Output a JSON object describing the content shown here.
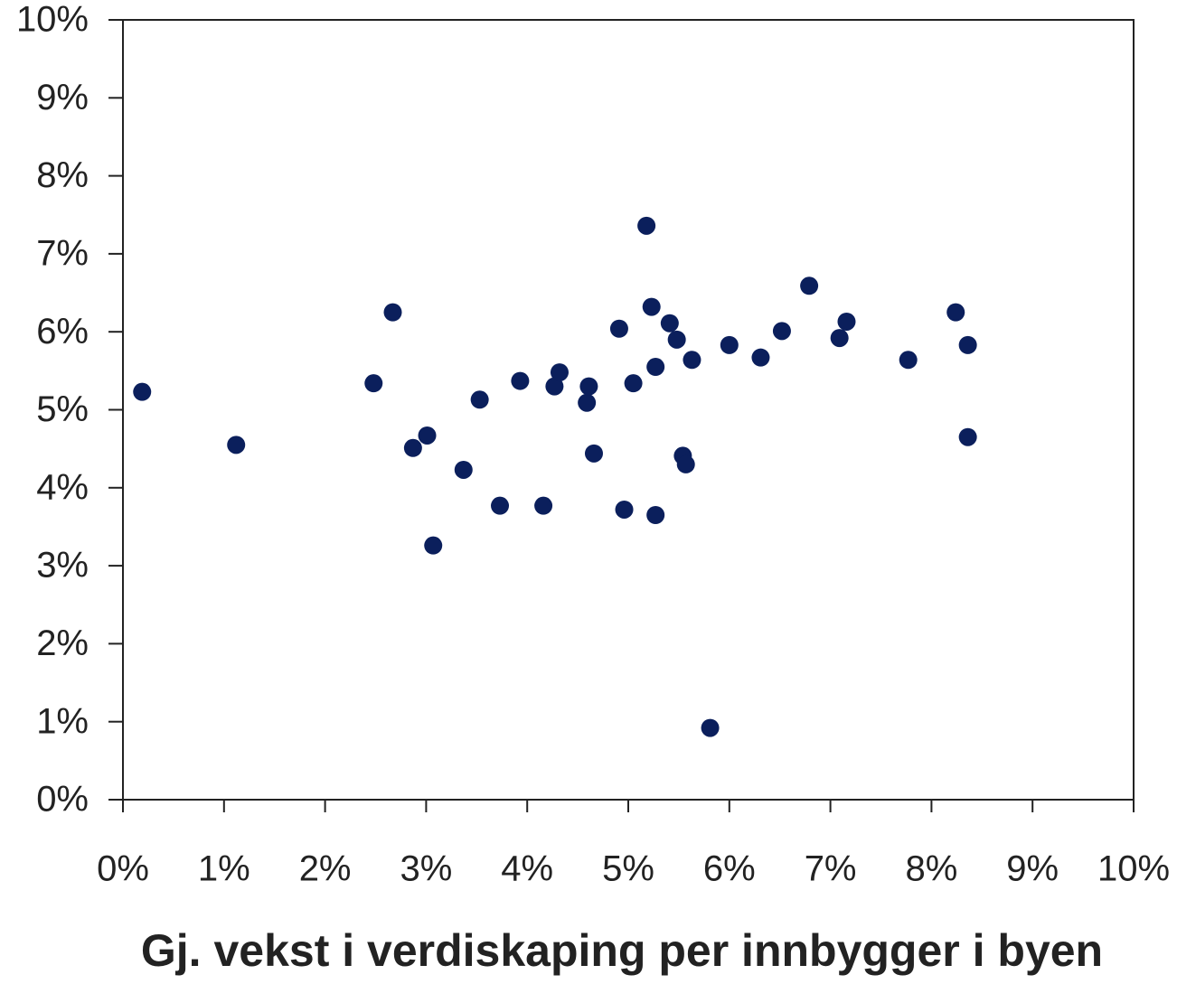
{
  "chart_data": {
    "type": "scatter",
    "x_label": "Gj. vekst i verdiskaping per innbygger i byen",
    "color": "#0b1f5c",
    "x": [
      0.19,
      1.12,
      2.48,
      2.67,
      2.87,
      3.01,
      3.07,
      3.37,
      3.53,
      3.73,
      3.93,
      4.16,
      4.27,
      4.32,
      4.59,
      4.61,
      4.66,
      4.91,
      4.96,
      5.05,
      5.18,
      5.23,
      5.27,
      5.27,
      5.41,
      5.48,
      5.54,
      5.57,
      5.63,
      5.81,
      6.0,
      6.31,
      6.52,
      6.79,
      7.09,
      7.16,
      7.77,
      8.24,
      8.36,
      8.36
    ],
    "values": [
      5.23,
      4.55,
      5.34,
      6.25,
      4.51,
      4.67,
      3.26,
      4.23,
      5.13,
      3.77,
      5.37,
      3.77,
      5.3,
      5.48,
      5.09,
      5.3,
      4.44,
      6.04,
      3.72,
      5.34,
      7.36,
      6.32,
      5.55,
      3.65,
      6.11,
      5.9,
      4.41,
      4.3,
      5.64,
      0.92,
      5.83,
      5.67,
      6.01,
      6.59,
      5.92,
      6.13,
      5.64,
      6.25,
      5.83,
      4.65
    ],
    "xlim": [
      0,
      10
    ],
    "ylim": [
      0,
      10
    ],
    "xticks": [
      {
        "value": 0,
        "label": "0%"
      },
      {
        "value": 1,
        "label": "1%"
      },
      {
        "value": 2,
        "label": "2%"
      },
      {
        "value": 3,
        "label": "3%"
      },
      {
        "value": 4,
        "label": "4%"
      },
      {
        "value": 5,
        "label": "5%"
      },
      {
        "value": 6,
        "label": "6%"
      },
      {
        "value": 7,
        "label": "7%"
      },
      {
        "value": 8,
        "label": "8%"
      },
      {
        "value": 9,
        "label": "9%"
      },
      {
        "value": 10,
        "label": "10%"
      }
    ],
    "yticks": [
      {
        "value": 0,
        "label": "0%"
      },
      {
        "value": 1,
        "label": "1%"
      },
      {
        "value": 2,
        "label": "2%"
      },
      {
        "value": 3,
        "label": "3%"
      },
      {
        "value": 4,
        "label": "4%"
      },
      {
        "value": 5,
        "label": "5%"
      },
      {
        "value": 6,
        "label": "6%"
      },
      {
        "value": 7,
        "label": "7%"
      },
      {
        "value": 8,
        "label": "8%"
      },
      {
        "value": 9,
        "label": "9%"
      },
      {
        "value": 10,
        "label": "10%"
      }
    ],
    "grid": false
  }
}
